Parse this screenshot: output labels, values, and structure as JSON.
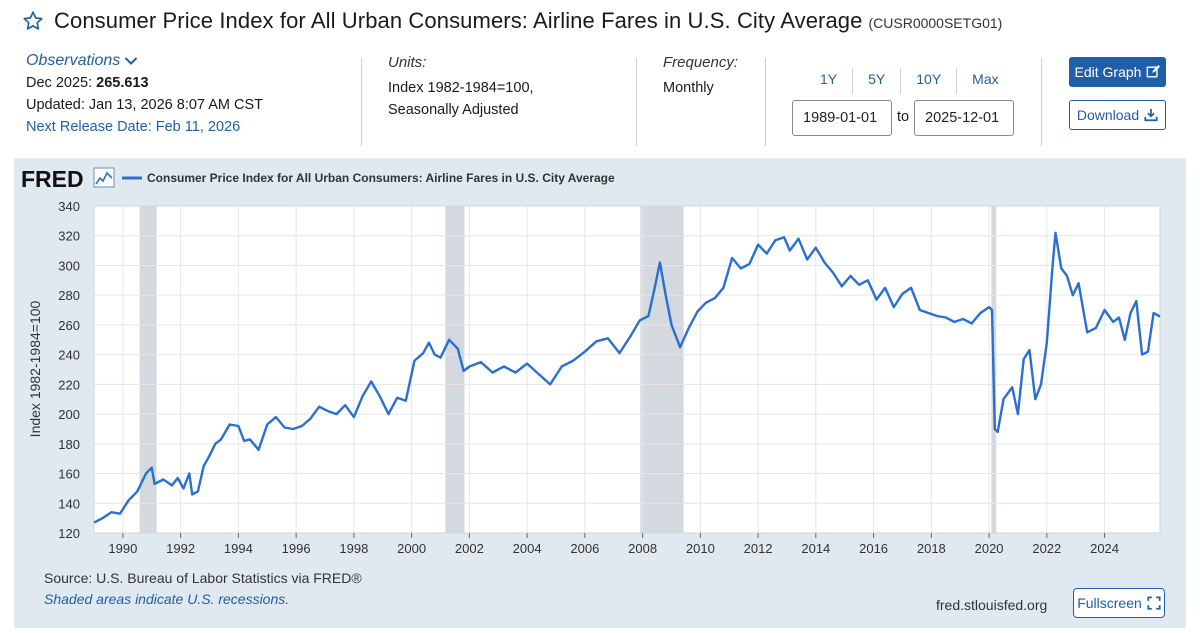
{
  "header": {
    "title": "Consumer Price Index for All Urban Consumers: Airline Fares in U.S. City Average",
    "series_id": "(CUSR0000SETG01)"
  },
  "observations": {
    "label": "Observations",
    "latest_date": "Dec 2025:",
    "latest_value": "265.613",
    "updated": "Updated: Jan 13, 2026 8:07 AM CST",
    "next_release": "Next Release Date: Feb 11, 2026"
  },
  "units": {
    "label": "Units:",
    "line1": "Index 1982-1984=100,",
    "line2": "Seasonally Adjusted"
  },
  "frequency": {
    "label": "Frequency:",
    "value": "Monthly"
  },
  "range": {
    "buttons": [
      "1Y",
      "5Y",
      "10Y",
      "Max"
    ],
    "start": "1989-01-01",
    "to_label": "to",
    "end": "2025-12-01"
  },
  "actions": {
    "edit_graph": "Edit Graph",
    "download": "Download",
    "fullscreen": "Fullscreen"
  },
  "footer": {
    "source": "Source: U.S. Bureau of Labor Statistics via FRED®",
    "shaded_note": "Shaded areas indicate U.S. recessions.",
    "site": "fred.stlouisfed.org"
  },
  "colors": {
    "brand_blue": "#1f5ea8",
    "line_blue": "#2a6fd1",
    "panel_bg": "#e1e9f0",
    "recession_shade": "#d4d9df"
  },
  "chart_data": {
    "type": "line",
    "logo_text": "FRED",
    "legend": "Consumer Price Index for All Urban Consumers: Airline Fares in U.S. City Average",
    "ylabel": "Index 1982-1984=100",
    "xlim": [
      1989.0,
      2025.92
    ],
    "ylim": [
      120,
      340
    ],
    "yticks": [
      120,
      140,
      160,
      180,
      200,
      220,
      240,
      260,
      280,
      300,
      320,
      340
    ],
    "xticks": [
      1990,
      1992,
      1994,
      1996,
      1998,
      2000,
      2002,
      2004,
      2006,
      2008,
      2010,
      2012,
      2014,
      2016,
      2018,
      2020,
      2022,
      2024
    ],
    "recessions": [
      [
        1990.58,
        1991.17
      ],
      [
        2001.17,
        2001.83
      ],
      [
        2007.92,
        2009.42
      ],
      [
        2020.08,
        2020.25
      ]
    ],
    "series": [
      {
        "name": "Consumer Price Index for All Urban Consumers: Airline Fares in U.S. City Average",
        "x": [
          1989.0,
          1989.3,
          1989.6,
          1989.9,
          1990.2,
          1990.5,
          1990.8,
          1991.0,
          1991.1,
          1991.4,
          1991.7,
          1991.9,
          1992.1,
          1992.3,
          1992.4,
          1992.6,
          1992.8,
          1993.0,
          1993.2,
          1993.4,
          1993.7,
          1994.0,
          1994.2,
          1994.4,
          1994.7,
          1995.0,
          1995.3,
          1995.6,
          1995.9,
          1996.2,
          1996.5,
          1996.8,
          1997.1,
          1997.4,
          1997.7,
          1998.0,
          1998.3,
          1998.6,
          1998.9,
          1999.2,
          1999.5,
          1999.8,
          2000.1,
          2000.4,
          2000.6,
          2000.8,
          2001.0,
          2001.3,
          2001.6,
          2001.8,
          2002.0,
          2002.4,
          2002.8,
          2003.2,
          2003.6,
          2004.0,
          2004.4,
          2004.8,
          2005.2,
          2005.6,
          2006.0,
          2006.4,
          2006.8,
          2007.2,
          2007.6,
          2007.9,
          2008.2,
          2008.4,
          2008.6,
          2008.8,
          2009.0,
          2009.3,
          2009.6,
          2009.9,
          2010.2,
          2010.5,
          2010.8,
          2011.1,
          2011.4,
          2011.7,
          2012.0,
          2012.3,
          2012.6,
          2012.9,
          2013.1,
          2013.4,
          2013.7,
          2014.0,
          2014.3,
          2014.6,
          2014.9,
          2015.2,
          2015.5,
          2015.8,
          2016.1,
          2016.4,
          2016.7,
          2017.0,
          2017.3,
          2017.6,
          2017.9,
          2018.2,
          2018.5,
          2018.8,
          2019.1,
          2019.4,
          2019.7,
          2020.0,
          2020.1,
          2020.2,
          2020.3,
          2020.5,
          2020.8,
          2021.0,
          2021.2,
          2021.4,
          2021.6,
          2021.8,
          2022.0,
          2022.2,
          2022.3,
          2022.5,
          2022.7,
          2022.9,
          2023.1,
          2023.4,
          2023.7,
          2024.0,
          2024.3,
          2024.5,
          2024.7,
          2024.9,
          2025.1,
          2025.3,
          2025.5,
          2025.7,
          2025.92
        ],
        "y": [
          127,
          130,
          134,
          133,
          142,
          148,
          160,
          164,
          153,
          156,
          152,
          157,
          150,
          160,
          146,
          148,
          165,
          172,
          180,
          183,
          193,
          192,
          182,
          183,
          176,
          193,
          198,
          191,
          190,
          192,
          197,
          205,
          202,
          200,
          206,
          198,
          212,
          222,
          212,
          200,
          211,
          209,
          236,
          241,
          248,
          240,
          238,
          250,
          244,
          229,
          232,
          235,
          228,
          232,
          228,
          234,
          227,
          220,
          232,
          236,
          242,
          249,
          251,
          241,
          253,
          263,
          266,
          283,
          302,
          280,
          260,
          245,
          258,
          269,
          275,
          278,
          285,
          305,
          298,
          301,
          314,
          308,
          317,
          319,
          310,
          318,
          304,
          312,
          302,
          295,
          286,
          293,
          287,
          290,
          277,
          285,
          272,
          281,
          285,
          270,
          268,
          266,
          265,
          262,
          264,
          261,
          268,
          272,
          270,
          190,
          188,
          210,
          218,
          200,
          237,
          243,
          210,
          220,
          248,
          300,
          322,
          298,
          293,
          280,
          288,
          255,
          258,
          270,
          262,
          265,
          250,
          268,
          276,
          240,
          242,
          268,
          265.613
        ]
      }
    ]
  }
}
